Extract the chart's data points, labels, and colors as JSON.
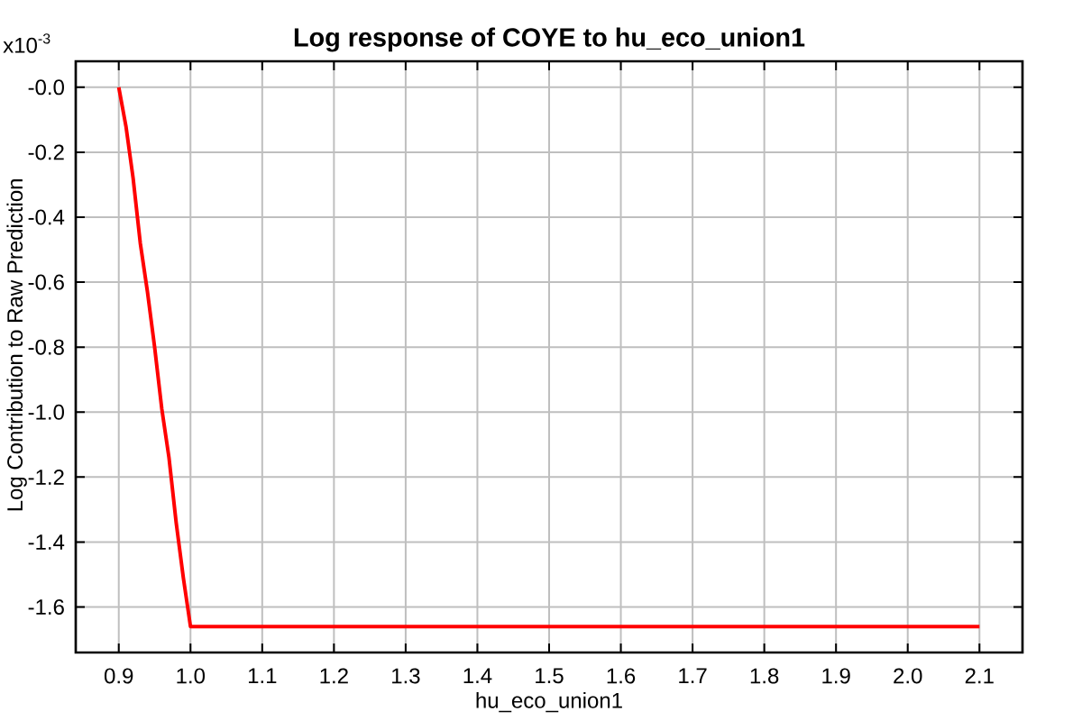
{
  "chart_data": {
    "type": "line",
    "title": "Log response of COYE to hu_eco_union1",
    "xlabel": "hu_eco_union1",
    "ylabel": "Log Contribution to Raw Prediction",
    "annotations": [
      "x10$^{-3}$"
    ],
    "x": [
      0.9,
      0.91,
      0.92,
      0.93,
      0.94,
      0.95,
      0.96,
      0.97,
      0.98,
      0.99,
      1.0,
      2.1
    ],
    "series": [
      {
        "color": "#ff0000",
        "values": [
          0,
          -0.12,
          -0.28,
          -0.48,
          -0.63,
          -0.8,
          -0.99,
          -1.14,
          -1.34,
          -1.51,
          -1.66,
          -1.66
        ]
      }
    ],
    "xlim": [
      0.84,
      2.16
    ],
    "ylim": [
      -1.74,
      0.08
    ],
    "xticks": [
      0.9,
      {
        "value": 1,
        "label": "1.0"
      },
      1.1,
      1.2,
      1.3,
      1.4,
      1.5,
      1.6,
      1.7,
      1.8,
      1.9,
      {
        "value": 2,
        "label": "2.0"
      },
      2.1
    ],
    "yticks": [
      {
        "value": 0,
        "label": "-0.0"
      },
      -0.2,
      -0.4,
      -0.6,
      -0.8,
      {
        "value": -1,
        "label": "-1.0"
      },
      -1.2,
      -1.4,
      -1.6
    ],
    "grid": true,
    "marker": "none",
    "line_style": "solid"
  }
}
